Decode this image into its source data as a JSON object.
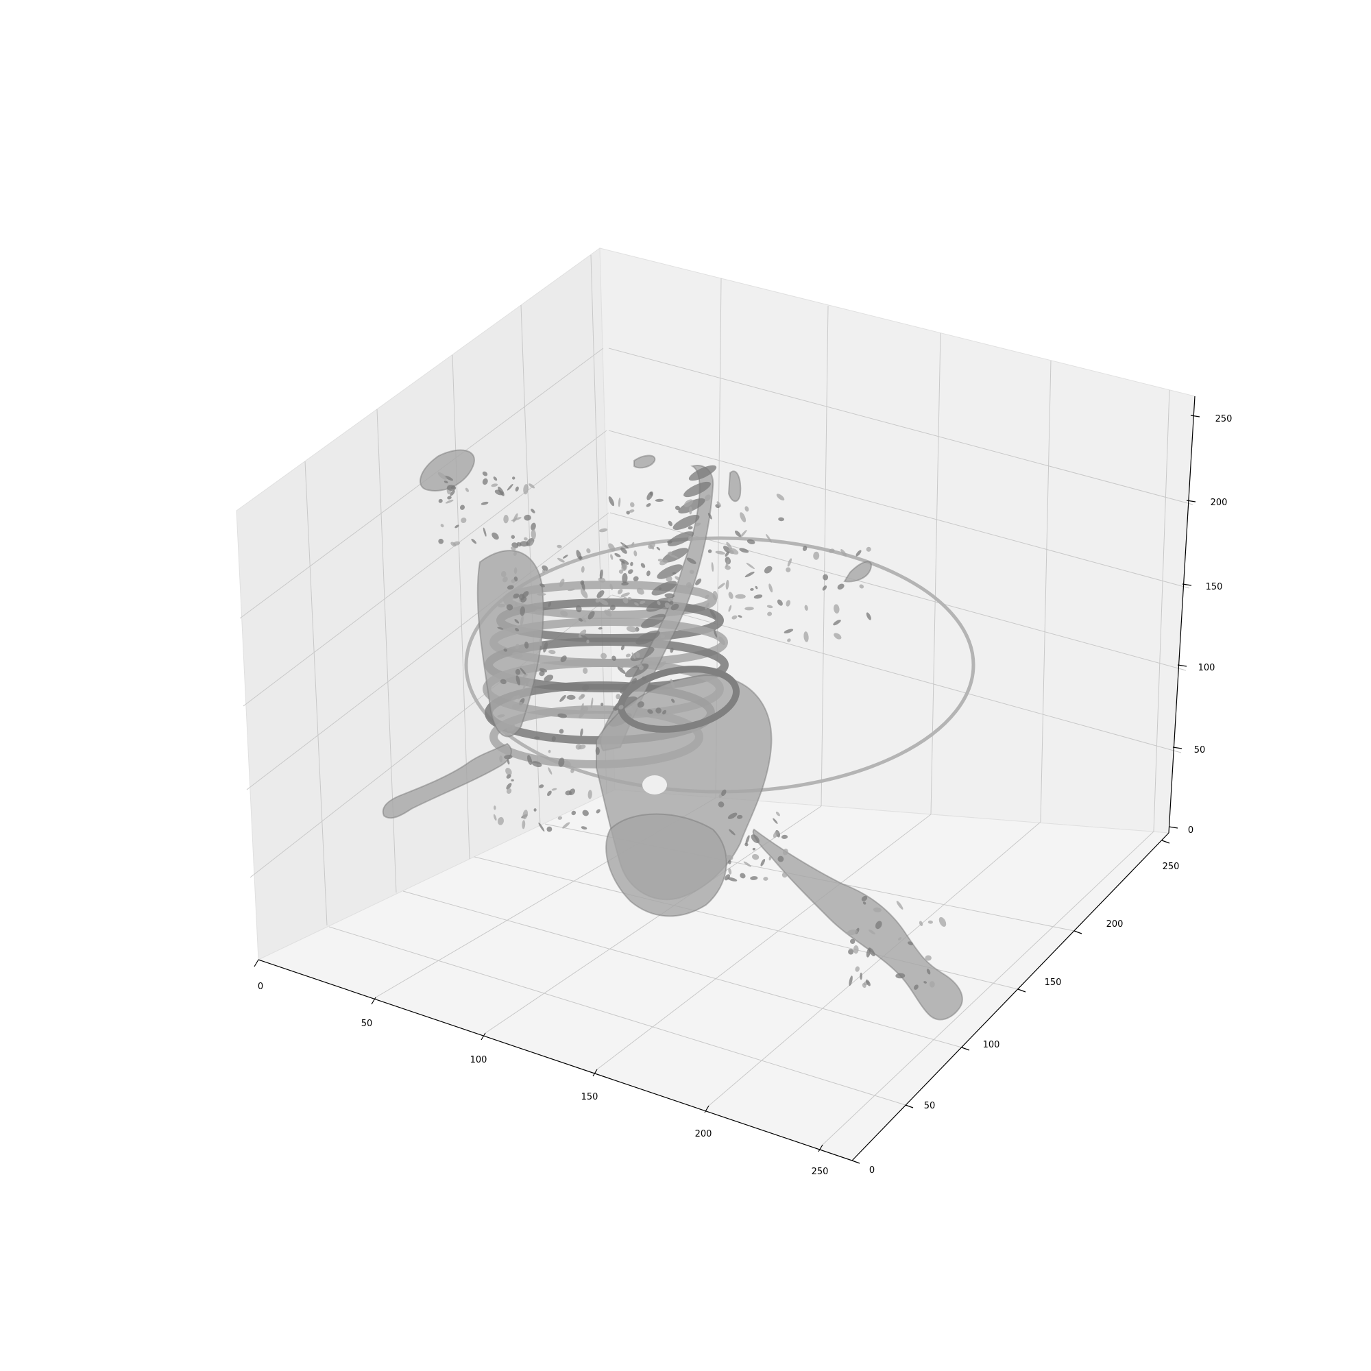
{
  "chart_data": {
    "type": "3d-isosurface",
    "title": "",
    "xlabel": "",
    "ylabel": "",
    "zlabel": "",
    "xlim": [
      0,
      256
    ],
    "ylim": [
      0,
      256
    ],
    "zlim": [
      0,
      256
    ],
    "grid": true,
    "legend": "none",
    "x_ticks": [
      "0",
      "50",
      "100",
      "150",
      "200",
      "250"
    ],
    "y_ticks": [
      "0",
      "50",
      "100",
      "150",
      "200",
      "250"
    ],
    "z_ticks": [
      "0",
      "50",
      "100",
      "150",
      "200",
      "250"
    ],
    "surface_color": "#a6a6a6",
    "surface_dark_color": "#7a7a7a",
    "pane_colors": [
      "#f2f2f2",
      "#ebebeb",
      "#f5f5f5"
    ]
  }
}
